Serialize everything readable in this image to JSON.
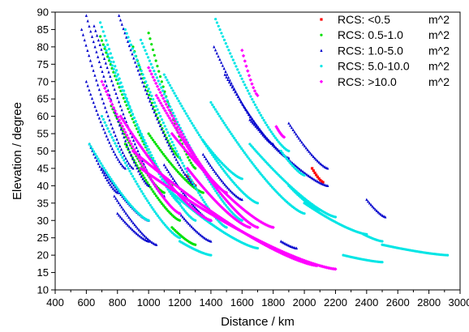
{
  "chart_data": {
    "type": "scatter",
    "xlabel": "Distance / km",
    "ylabel": "Elevation / degree",
    "xlim": [
      400,
      3000
    ],
    "ylim": [
      10,
      90
    ],
    "x_ticks": [
      "400",
      "600",
      "800",
      "1000",
      "1200",
      "1400",
      "1600",
      "1800",
      "2000",
      "2200",
      "2400",
      "2600",
      "2800",
      "3000"
    ],
    "y_ticks": [
      "10",
      "15",
      "20",
      "25",
      "30",
      "35",
      "40",
      "45",
      "50",
      "55",
      "60",
      "65",
      "70",
      "75",
      "80",
      "85",
      "90"
    ],
    "grid": false,
    "legend_position": "top-right",
    "legend_unit": "m^2",
    "series": [
      {
        "name": "RCS: <0.5",
        "color": "#ff0000",
        "marker": "square",
        "arcs": [
          {
            "x_start": 2050,
            "y_start": 45,
            "x_end": 2120,
            "y_end": 41
          },
          {
            "x_start": 1250,
            "y_start": 43,
            "x_end": 1300,
            "y_end": 40
          }
        ]
      },
      {
        "name": "RCS: 0.5-1.0",
        "color": "#00e000",
        "marker": "circle",
        "arcs": [
          {
            "x_start": 690,
            "y_start": 83,
            "x_end": 1150,
            "y_end": 40
          },
          {
            "x_start": 900,
            "y_start": 80,
            "x_end": 1200,
            "y_end": 48
          },
          {
            "x_start": 1000,
            "y_start": 84,
            "x_end": 1300,
            "y_end": 45
          },
          {
            "x_start": 760,
            "y_start": 63,
            "x_end": 1100,
            "y_end": 38
          },
          {
            "x_start": 850,
            "y_start": 52,
            "x_end": 1200,
            "y_end": 30
          },
          {
            "x_start": 1150,
            "y_start": 28,
            "x_end": 1300,
            "y_end": 23
          },
          {
            "x_start": 1000,
            "y_start": 55,
            "x_end": 1350,
            "y_end": 38
          }
        ]
      },
      {
        "name": "RCS: 1.0-5.0",
        "color": "#0000cc",
        "marker": "triangle",
        "arcs": [
          {
            "x_start": 600,
            "y_start": 89,
            "x_end": 1000,
            "y_end": 40
          },
          {
            "x_start": 570,
            "y_start": 85,
            "x_end": 900,
            "y_end": 45
          },
          {
            "x_start": 650,
            "y_start": 86,
            "x_end": 1100,
            "y_end": 37
          },
          {
            "x_start": 810,
            "y_start": 89,
            "x_end": 1300,
            "y_end": 40
          },
          {
            "x_start": 600,
            "y_start": 70,
            "x_end": 850,
            "y_end": 45
          },
          {
            "x_start": 620,
            "y_start": 52,
            "x_end": 800,
            "y_end": 38
          },
          {
            "x_start": 700,
            "y_start": 45,
            "x_end": 1000,
            "y_end": 30
          },
          {
            "x_start": 780,
            "y_start": 37,
            "x_end": 1050,
            "y_end": 23
          },
          {
            "x_start": 800,
            "y_start": 32,
            "x_end": 1000,
            "y_end": 24
          },
          {
            "x_start": 1200,
            "y_start": 32,
            "x_end": 1400,
            "y_end": 24
          },
          {
            "x_start": 1420,
            "y_start": 80,
            "x_end": 1800,
            "y_end": 52
          },
          {
            "x_start": 1490,
            "y_start": 72,
            "x_end": 1900,
            "y_end": 48
          },
          {
            "x_start": 1650,
            "y_start": 59,
            "x_end": 2150,
            "y_end": 40
          },
          {
            "x_start": 1900,
            "y_start": 58,
            "x_end": 2150,
            "y_end": 45
          },
          {
            "x_start": 2400,
            "y_start": 36,
            "x_end": 2520,
            "y_end": 31
          },
          {
            "x_start": 1850,
            "y_start": 24,
            "x_end": 1950,
            "y_end": 22
          },
          {
            "x_start": 1350,
            "y_start": 49,
            "x_end": 1600,
            "y_end": 36
          },
          {
            "x_start": 1100,
            "y_start": 46,
            "x_end": 1400,
            "y_end": 30
          }
        ]
      },
      {
        "name": "RCS: 5.0-10.0",
        "color": "#00e5e5",
        "marker": "circle",
        "arcs": [
          {
            "x_start": 690,
            "y_start": 87,
            "x_end": 1200,
            "y_end": 35
          },
          {
            "x_start": 720,
            "y_start": 80,
            "x_end": 1300,
            "y_end": 30
          },
          {
            "x_start": 850,
            "y_start": 85,
            "x_end": 1500,
            "y_end": 28
          },
          {
            "x_start": 950,
            "y_start": 82,
            "x_end": 1600,
            "y_end": 30
          },
          {
            "x_start": 620,
            "y_start": 52,
            "x_end": 1000,
            "y_end": 30
          },
          {
            "x_start": 700,
            "y_start": 60,
            "x_end": 1200,
            "y_end": 25
          },
          {
            "x_start": 1100,
            "y_start": 72,
            "x_end": 1700,
            "y_end": 35
          },
          {
            "x_start": 1430,
            "y_start": 88,
            "x_end": 1900,
            "y_end": 50
          },
          {
            "x_start": 1400,
            "y_start": 64,
            "x_end": 2000,
            "y_end": 32
          },
          {
            "x_start": 1650,
            "y_start": 52,
            "x_end": 2200,
            "y_end": 31
          },
          {
            "x_start": 1850,
            "y_start": 50,
            "x_end": 2000,
            "y_end": 43
          },
          {
            "x_start": 1900,
            "y_start": 40,
            "x_end": 2100,
            "y_end": 33
          },
          {
            "x_start": 2000,
            "y_start": 35,
            "x_end": 2400,
            "y_end": 26
          },
          {
            "x_start": 2500,
            "y_start": 23,
            "x_end": 2920,
            "y_end": 20
          },
          {
            "x_start": 2250,
            "y_start": 20,
            "x_end": 2500,
            "y_end": 18
          },
          {
            "x_start": 2380,
            "y_start": 26,
            "x_end": 2500,
            "y_end": 24
          },
          {
            "x_start": 1150,
            "y_start": 38,
            "x_end": 1700,
            "y_end": 22
          },
          {
            "x_start": 1200,
            "y_start": 24,
            "x_end": 1400,
            "y_end": 20
          },
          {
            "x_start": 1350,
            "y_start": 53,
            "x_end": 1600,
            "y_end": 42
          }
        ]
      },
      {
        "name": "RCS: >10.0",
        "color": "#ff00ff",
        "marker": "diamond",
        "arcs": [
          {
            "x_start": 700,
            "y_start": 70,
            "x_end": 1200,
            "y_end": 32
          },
          {
            "x_start": 820,
            "y_start": 60,
            "x_end": 1400,
            "y_end": 30
          },
          {
            "x_start": 900,
            "y_start": 50,
            "x_end": 2080,
            "y_end": 17
          },
          {
            "x_start": 950,
            "y_start": 45,
            "x_end": 2200,
            "y_end": 16
          },
          {
            "x_start": 1000,
            "y_start": 74,
            "x_end": 1500,
            "y_end": 38
          },
          {
            "x_start": 1050,
            "y_start": 66,
            "x_end": 1700,
            "y_end": 28
          },
          {
            "x_start": 1150,
            "y_start": 55,
            "x_end": 1800,
            "y_end": 28
          },
          {
            "x_start": 1600,
            "y_start": 79,
            "x_end": 1700,
            "y_end": 66
          },
          {
            "x_start": 1820,
            "y_start": 57,
            "x_end": 1870,
            "y_end": 54
          },
          {
            "x_start": 1250,
            "y_start": 45,
            "x_end": 1650,
            "y_end": 28
          }
        ]
      }
    ]
  }
}
